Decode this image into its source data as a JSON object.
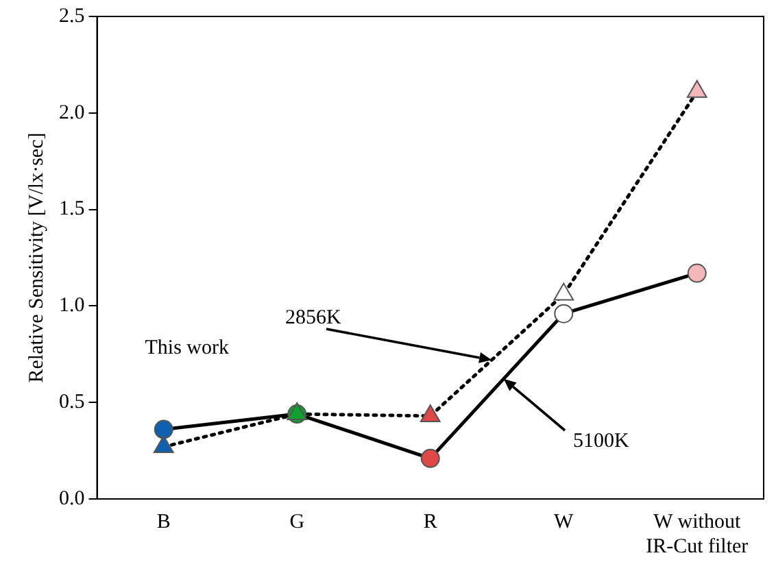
{
  "chart_data": {
    "type": "line",
    "ylabel": "Relative Sensitivity [V/lx·sec]",
    "categories": [
      "B",
      "G",
      "R",
      "W",
      "W without\nIR-Cut filter"
    ],
    "series": [
      {
        "color": "#000000",
        "colors": [
          "#1060b0",
          "#10a030",
          "#e04848",
          "#ffffff",
          "#f4b8b8"
        ],
        "marker": "triangle",
        "line_style": "dotted",
        "values": [
          0.27,
          0.44,
          0.43,
          1.06,
          2.11
        ]
      },
      {
        "color": "#000000",
        "colors": [
          "#1060b0",
          "#10a030",
          "#e04848",
          "#ffffff",
          "#f4b8b8"
        ],
        "marker": "circle",
        "line_style": "solid",
        "values": [
          0.36,
          0.44,
          0.21,
          0.96,
          1.17
        ]
      }
    ],
    "ylim": [
      0,
      2.5
    ],
    "yticks": [
      {
        "value": 0,
        "label": "0.0"
      },
      {
        "value": 0.5,
        "label": "0.5"
      },
      {
        "value": 1,
        "label": "1.0"
      },
      {
        "value": 1.5,
        "label": "1.5"
      },
      {
        "value": 2,
        "label": "2.0"
      },
      {
        "value": 2.5,
        "label": "2.5"
      }
    ],
    "annotations": [
      "This work",
      "2856K",
      "5100K"
    ],
    "grid": false,
    "legend": false
  }
}
